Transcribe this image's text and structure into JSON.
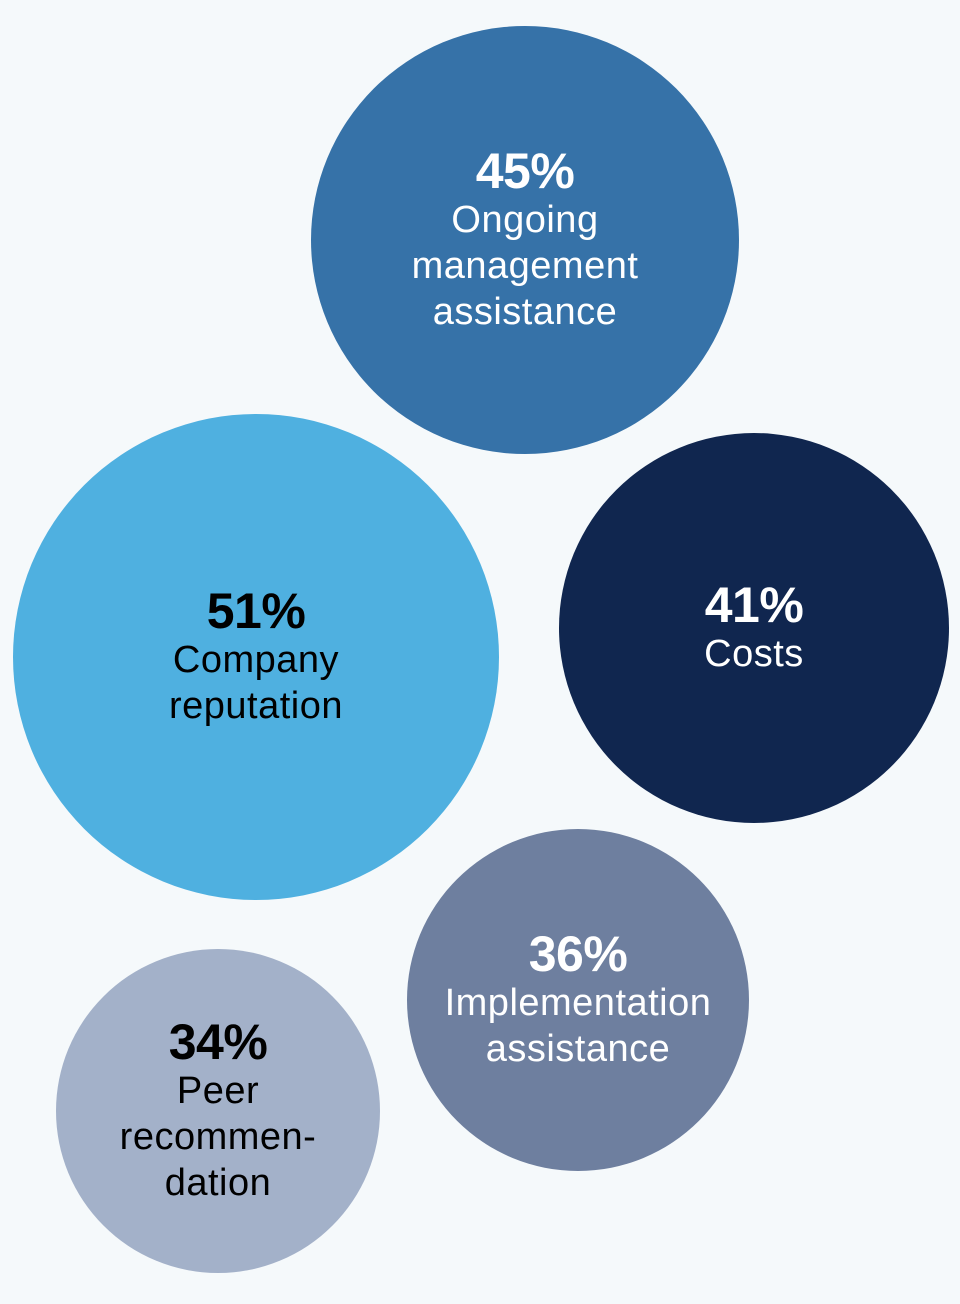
{
  "chart_data": {
    "type": "bubble",
    "title": "",
    "series": [
      {
        "name": "Ongoing management assistance",
        "label": "Ongoing\nmanagement\nassistance",
        "value": 45,
        "value_label": "45%",
        "color": "#3672a8",
        "text_color": "#ffffff"
      },
      {
        "name": "Company reputation",
        "label": "Company\nreputation",
        "value": 51,
        "value_label": "51%",
        "color": "#4fb0e0",
        "text_color": "#000000"
      },
      {
        "name": "Costs",
        "label": "Costs",
        "value": 41,
        "value_label": "41%",
        "color": "#10264f",
        "text_color": "#ffffff"
      },
      {
        "name": "Implementation assistance",
        "label": "Implementation\nassistance",
        "value": 36,
        "value_label": "36%",
        "color": "#6e7f9f",
        "text_color": "#ffffff"
      },
      {
        "name": "Peer recommendation",
        "label": "Peer\nrecommen-\ndation",
        "value": 34,
        "value_label": "34%",
        "color": "#a3b1c9",
        "text_color": "#000000"
      }
    ]
  }
}
